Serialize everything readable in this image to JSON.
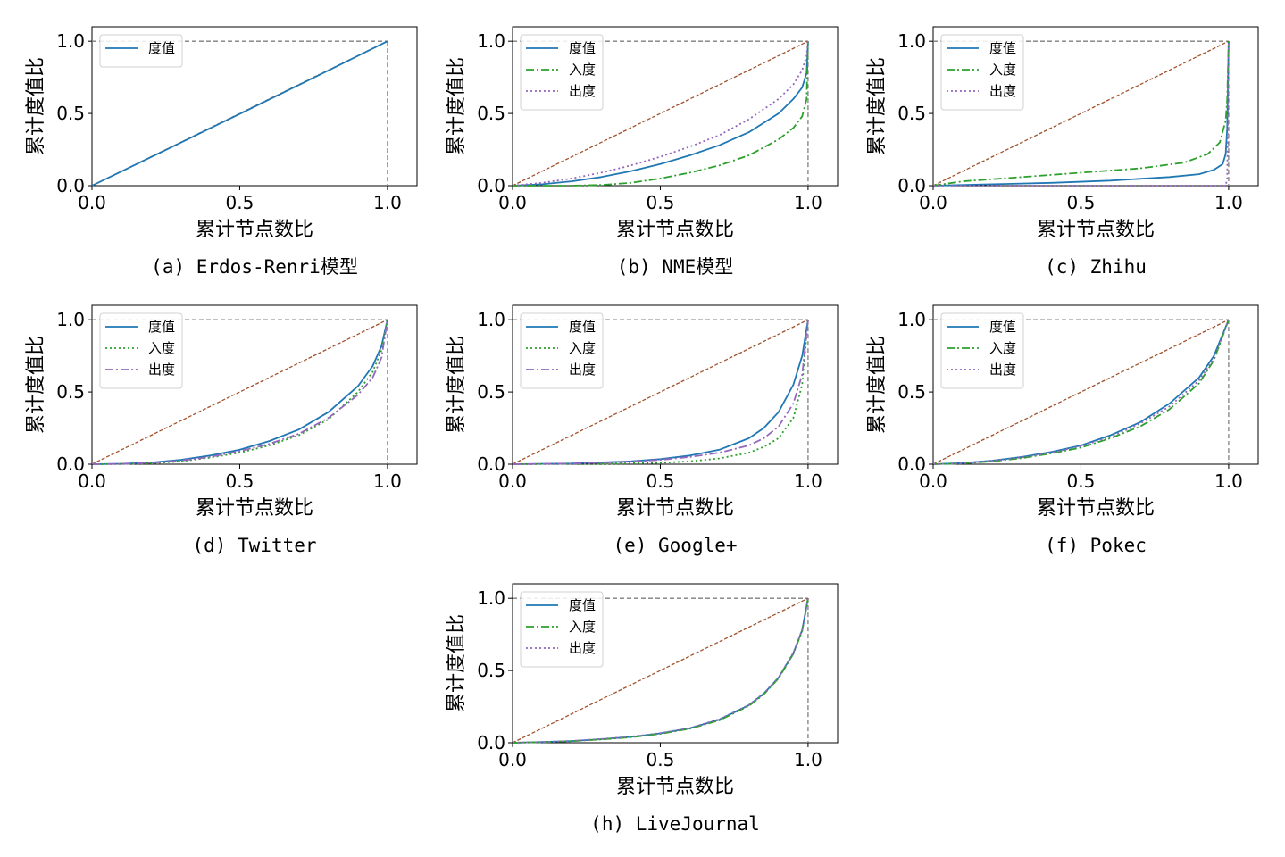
{
  "figure": {
    "xlabel": "累计节点数比",
    "ylabel": "累计度值比",
    "xticks": [
      "0.0",
      "0.5",
      "1.0"
    ],
    "yticks": [
      "0.0",
      "0.5",
      "1.0"
    ],
    "colors": {
      "degree": "#1f77b4",
      "in_degree": "#2ca02c",
      "out_degree": "#9467bd",
      "equality": "#a0522d",
      "boundary": "#7f7f7f"
    }
  },
  "chart_data": [
    {
      "type": "line",
      "caption": "(a) Erdos-Renri模型",
      "xlim": [
        0,
        1.1
      ],
      "ylim": [
        0,
        1.1
      ],
      "grid": false,
      "legend_position": "top-left",
      "series": [
        {
          "name": "度值",
          "style": "solid",
          "color": "#1f77b4",
          "x": [
            0,
            0.25,
            0.5,
            0.75,
            1.0
          ],
          "y": [
            0,
            0.248,
            0.497,
            0.747,
            1.0
          ]
        }
      ]
    },
    {
      "type": "line",
      "caption": "(b) NME模型",
      "xlim": [
        0,
        1.1
      ],
      "ylim": [
        0,
        1.1
      ],
      "grid": false,
      "legend_position": "top-left",
      "series": [
        {
          "name": "度值",
          "style": "solid",
          "color": "#1f77b4",
          "x": [
            0,
            0.1,
            0.2,
            0.3,
            0.4,
            0.5,
            0.6,
            0.7,
            0.8,
            0.9,
            0.95,
            0.98,
            0.995,
            1.0
          ],
          "y": [
            0,
            0.01,
            0.03,
            0.06,
            0.1,
            0.15,
            0.21,
            0.28,
            0.37,
            0.5,
            0.6,
            0.68,
            0.78,
            1.0
          ]
        },
        {
          "name": "入度",
          "style": "dashdot",
          "color": "#2ca02c",
          "x": [
            0,
            0.2,
            0.3,
            0.4,
            0.5,
            0.6,
            0.7,
            0.8,
            0.9,
            0.95,
            0.98,
            0.995,
            1.0
          ],
          "y": [
            0,
            0.0,
            0.005,
            0.02,
            0.05,
            0.09,
            0.14,
            0.21,
            0.32,
            0.4,
            0.48,
            0.6,
            1.0
          ]
        },
        {
          "name": "出度",
          "style": "dotted",
          "color": "#9467bd",
          "x": [
            0,
            0.1,
            0.2,
            0.3,
            0.4,
            0.5,
            0.6,
            0.7,
            0.8,
            0.9,
            0.95,
            0.98,
            0.995,
            1.0
          ],
          "y": [
            0,
            0.02,
            0.05,
            0.09,
            0.14,
            0.2,
            0.27,
            0.35,
            0.46,
            0.6,
            0.7,
            0.8,
            0.9,
            1.0
          ]
        }
      ]
    },
    {
      "type": "line",
      "caption": "(c) Zhihu",
      "xlim": [
        0,
        1.1
      ],
      "ylim": [
        0,
        1.1
      ],
      "grid": false,
      "legend_position": "top-left",
      "series": [
        {
          "name": "度值",
          "style": "solid",
          "color": "#1f77b4",
          "x": [
            0,
            0.2,
            0.4,
            0.6,
            0.8,
            0.9,
            0.95,
            0.98,
            0.99,
            0.995,
            1.0
          ],
          "y": [
            0,
            0.01,
            0.02,
            0.035,
            0.06,
            0.08,
            0.11,
            0.15,
            0.22,
            0.4,
            1.0
          ]
        },
        {
          "name": "入度",
          "style": "dashdot",
          "color": "#2ca02c",
          "x": [
            0,
            0.1,
            0.3,
            0.5,
            0.7,
            0.85,
            0.93,
            0.97,
            0.99,
            0.995,
            1.0
          ],
          "y": [
            0,
            0.03,
            0.06,
            0.09,
            0.12,
            0.16,
            0.22,
            0.3,
            0.45,
            0.6,
            1.0
          ]
        },
        {
          "name": "出度",
          "style": "dotted",
          "color": "#9467bd",
          "x": [
            0,
            0.5,
            0.98,
            0.99,
            0.995,
            1.0
          ],
          "y": [
            0,
            0.0,
            0.0,
            0.0,
            0.05,
            1.0
          ]
        }
      ]
    },
    {
      "type": "line",
      "caption": "(d) Twitter",
      "xlim": [
        0,
        1.1
      ],
      "ylim": [
        0,
        1.1
      ],
      "grid": false,
      "legend_position": "top-left",
      "series": [
        {
          "name": "度值",
          "style": "solid",
          "color": "#1f77b4",
          "x": [
            0,
            0.1,
            0.2,
            0.3,
            0.4,
            0.5,
            0.6,
            0.7,
            0.8,
            0.9,
            0.95,
            0.98,
            1.0
          ],
          "y": [
            0,
            0.003,
            0.012,
            0.03,
            0.06,
            0.1,
            0.16,
            0.24,
            0.36,
            0.54,
            0.68,
            0.82,
            1.0
          ]
        },
        {
          "name": "入度",
          "style": "dotted",
          "color": "#2ca02c",
          "x": [
            0,
            0.1,
            0.2,
            0.3,
            0.4,
            0.5,
            0.6,
            0.7,
            0.8,
            0.9,
            0.95,
            0.98,
            1.0
          ],
          "y": [
            0,
            0.001,
            0.006,
            0.02,
            0.045,
            0.08,
            0.13,
            0.2,
            0.31,
            0.5,
            0.64,
            0.79,
            1.0
          ]
        },
        {
          "name": "出度",
          "style": "dashdot",
          "color": "#9467bd",
          "x": [
            0,
            0.1,
            0.2,
            0.3,
            0.4,
            0.5,
            0.6,
            0.7,
            0.8,
            0.9,
            0.95,
            0.98,
            1.0
          ],
          "y": [
            0,
            0.002,
            0.009,
            0.025,
            0.05,
            0.09,
            0.14,
            0.21,
            0.32,
            0.48,
            0.6,
            0.74,
            1.0
          ]
        }
      ]
    },
    {
      "type": "line",
      "caption": "(e) Google+",
      "xlim": [
        0,
        1.1
      ],
      "ylim": [
        0,
        1.1
      ],
      "grid": false,
      "legend_position": "top-left",
      "series": [
        {
          "name": "度值",
          "style": "solid",
          "color": "#1f77b4",
          "x": [
            0,
            0.2,
            0.4,
            0.5,
            0.6,
            0.7,
            0.8,
            0.85,
            0.9,
            0.95,
            0.98,
            1.0
          ],
          "y": [
            0,
            0.005,
            0.02,
            0.035,
            0.06,
            0.1,
            0.18,
            0.25,
            0.36,
            0.55,
            0.75,
            1.0
          ]
        },
        {
          "name": "入度",
          "style": "dotted",
          "color": "#2ca02c",
          "x": [
            0,
            0.3,
            0.5,
            0.6,
            0.7,
            0.8,
            0.85,
            0.9,
            0.95,
            0.98,
            1.0
          ],
          "y": [
            0,
            0.002,
            0.01,
            0.02,
            0.04,
            0.08,
            0.12,
            0.18,
            0.32,
            0.55,
            1.0
          ]
        },
        {
          "name": "出度",
          "style": "dashdot",
          "color": "#9467bd",
          "x": [
            0,
            0.2,
            0.4,
            0.5,
            0.6,
            0.7,
            0.8,
            0.85,
            0.9,
            0.95,
            0.98,
            1.0
          ],
          "y": [
            0,
            0.004,
            0.018,
            0.03,
            0.05,
            0.08,
            0.13,
            0.18,
            0.26,
            0.42,
            0.62,
            1.0
          ]
        }
      ]
    },
    {
      "type": "line",
      "caption": "(f) Pokec",
      "xlim": [
        0,
        1.1
      ],
      "ylim": [
        0,
        1.1
      ],
      "grid": false,
      "legend_position": "top-left",
      "series": [
        {
          "name": "度值",
          "style": "solid",
          "color": "#1f77b4",
          "x": [
            0,
            0.1,
            0.2,
            0.3,
            0.4,
            0.5,
            0.6,
            0.7,
            0.8,
            0.9,
            0.95,
            1.0
          ],
          "y": [
            0,
            0.008,
            0.025,
            0.05,
            0.085,
            0.13,
            0.2,
            0.29,
            0.42,
            0.6,
            0.75,
            1.0
          ]
        },
        {
          "name": "入度",
          "style": "dashdot",
          "color": "#2ca02c",
          "x": [
            0,
            0.1,
            0.2,
            0.3,
            0.4,
            0.5,
            0.6,
            0.7,
            0.8,
            0.9,
            0.95,
            1.0
          ],
          "y": [
            0,
            0.005,
            0.02,
            0.042,
            0.075,
            0.115,
            0.18,
            0.26,
            0.38,
            0.56,
            0.72,
            1.0
          ]
        },
        {
          "name": "出度",
          "style": "dotted",
          "color": "#9467bd",
          "x": [
            0,
            0.1,
            0.2,
            0.3,
            0.4,
            0.5,
            0.6,
            0.7,
            0.8,
            0.9,
            0.95,
            1.0
          ],
          "y": [
            0,
            0.007,
            0.023,
            0.047,
            0.08,
            0.125,
            0.19,
            0.28,
            0.4,
            0.58,
            0.73,
            1.0
          ]
        }
      ]
    },
    {
      "type": "line",
      "caption": "(h) LiveJournal",
      "xlim": [
        0,
        1.1
      ],
      "ylim": [
        0,
        1.1
      ],
      "grid": false,
      "legend_position": "top-left",
      "series": [
        {
          "name": "度值",
          "style": "solid",
          "color": "#1f77b4",
          "x": [
            0,
            0.1,
            0.2,
            0.3,
            0.4,
            0.5,
            0.6,
            0.7,
            0.8,
            0.85,
            0.9,
            0.95,
            0.98,
            1.0
          ],
          "y": [
            0,
            0.005,
            0.012,
            0.025,
            0.04,
            0.065,
            0.1,
            0.16,
            0.26,
            0.34,
            0.45,
            0.62,
            0.78,
            1.0
          ]
        },
        {
          "name": "入度",
          "style": "dashdot",
          "color": "#2ca02c",
          "x": [
            0,
            0.1,
            0.2,
            0.3,
            0.4,
            0.5,
            0.6,
            0.7,
            0.8,
            0.85,
            0.9,
            0.95,
            0.98,
            1.0
          ],
          "y": [
            0,
            0.004,
            0.011,
            0.023,
            0.038,
            0.062,
            0.097,
            0.155,
            0.255,
            0.335,
            0.445,
            0.615,
            0.775,
            1.0
          ]
        },
        {
          "name": "出度",
          "style": "dotted",
          "color": "#9467bd",
          "x": [
            0,
            0.1,
            0.2,
            0.3,
            0.4,
            0.5,
            0.6,
            0.7,
            0.8,
            0.85,
            0.9,
            0.95,
            0.98,
            1.0
          ],
          "y": [
            0,
            0.005,
            0.013,
            0.026,
            0.042,
            0.067,
            0.102,
            0.163,
            0.262,
            0.342,
            0.452,
            0.622,
            0.782,
            1.0
          ]
        }
      ]
    }
  ]
}
